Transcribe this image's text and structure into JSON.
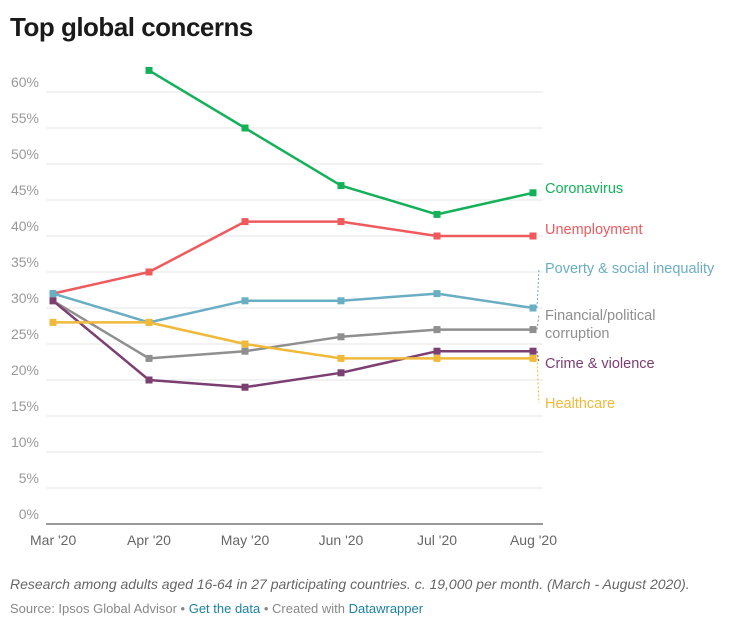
{
  "title": "Top global concerns",
  "notes": "Research among adults aged 16-64 in 27 participating countries. c. 19,000 per month. (March - August 2020).",
  "source": {
    "prefix": "Source: Ipsos Global Advisor • ",
    "get_data": "Get the data",
    "middle": " • Created with ",
    "tool": "Datawrapper"
  },
  "chart_data": {
    "type": "line",
    "title": "Top global concerns",
    "x": [
      "Mar '20",
      "Apr '20",
      "May '20",
      "Jun '20",
      "Jul '20",
      "Aug '20"
    ],
    "ylim": [
      0,
      60
    ],
    "yticks": [
      0,
      5,
      10,
      15,
      20,
      25,
      30,
      35,
      40,
      45,
      50,
      55,
      60
    ],
    "ytick_labels": [
      "0%",
      "5%",
      "10%",
      "15%",
      "20%",
      "25%",
      "30%",
      "35%",
      "40%",
      "45%",
      "50%",
      "55%",
      "60%"
    ],
    "grid": true,
    "series": [
      {
        "name": "Coronavirus",
        "label_lines": [
          "Coronavirus"
        ],
        "color": "#15b05a",
        "values": [
          null,
          63,
          55,
          47,
          43,
          46
        ]
      },
      {
        "name": "Unemployment",
        "label_lines": [
          "Unemployment"
        ],
        "color": "#ef5a5d",
        "values": [
          32,
          35,
          42,
          42,
          40,
          40
        ]
      },
      {
        "name": "Poverty & social inequality",
        "label_lines": [
          "Poverty & social inequality"
        ],
        "color": "#6aaec3",
        "values": [
          32,
          28,
          31,
          31,
          32,
          30
        ]
      },
      {
        "name": "Financial/political corruption",
        "label_lines": [
          "Financial/political",
          "corruption"
        ],
        "color": "#8f8f8f",
        "values": [
          31,
          23,
          24,
          26,
          27,
          27
        ]
      },
      {
        "name": "Crime & violence",
        "label_lines": [
          "Crime & violence"
        ],
        "color": "#7b3f72",
        "values": [
          31,
          20,
          19,
          21,
          24,
          24
        ]
      },
      {
        "name": "Healthcare",
        "label_lines": [
          "Healthcare"
        ],
        "color": "#f0b93a",
        "values": [
          28,
          28,
          25,
          23,
          23,
          23
        ]
      }
    ]
  }
}
